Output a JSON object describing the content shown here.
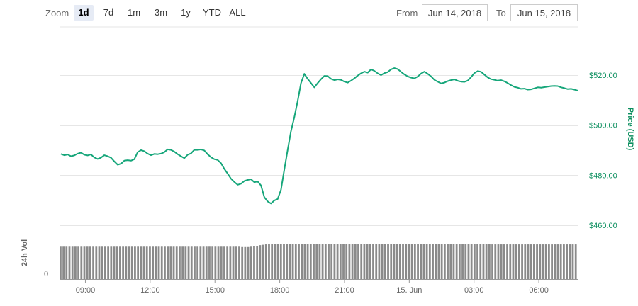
{
  "toolbar": {
    "zoom_label": "Zoom",
    "zoom_buttons": [
      "1d",
      "7d",
      "1m",
      "3m",
      "1y",
      "YTD",
      "ALL"
    ],
    "active_zoom": "1d",
    "from_label": "From",
    "from_value": "Jun 14, 2018",
    "to_label": "To",
    "to_value": "Jun 15, 2018"
  },
  "colors": {
    "price_line": "#16a67a",
    "price_axis": "#0b8e5e",
    "volume_bar": "#8a8a8a",
    "grid": "#e6e6e6"
  },
  "chart_data": {
    "type": "line",
    "ylabel": "Price (USD)",
    "y_ticks": [
      "$460.00",
      "$480.00",
      "$500.00",
      "$520.00"
    ],
    "ylim": [
      460,
      520
    ],
    "x_ticks": [
      "09:00",
      "12:00",
      "15:00",
      "18:00",
      "21:00",
      "15. Jun",
      "03:00",
      "06:00"
    ],
    "x_range": [
      "Jun 14, 2018 08:00",
      "Jun 15, 2018 08:00"
    ],
    "series": [
      {
        "values": [
          488.5,
          488,
          488.3,
          487.6,
          487.9,
          488.6,
          489,
          488.2,
          487.9,
          488.3,
          487.1,
          486.5,
          487,
          488,
          487.6,
          487,
          485.5,
          484.2,
          484.6,
          485.8,
          486,
          485.8,
          486.4,
          489.2,
          490,
          489.6,
          488.6,
          488,
          488.5,
          488.4,
          488.6,
          489.2,
          490.3,
          490.1,
          489.4,
          488.4,
          487.6,
          486.8,
          488.2,
          488.7,
          490.1,
          490.1,
          490.3,
          489.9,
          488.4,
          487.2,
          486.4,
          486.1,
          484.8,
          482.5,
          480.6,
          478.6,
          477.3,
          476.2,
          476.6,
          477.7,
          478.1,
          478.4,
          477.2,
          477.5,
          475.9,
          471.2,
          469.5,
          468.7,
          469.9,
          470.5,
          474.2,
          482.3,
          490.1,
          497.6,
          503.2,
          509.6,
          516.8,
          520.5,
          518.5,
          516.8,
          515.1,
          516.8,
          518.4,
          519.7,
          519.6,
          518.5,
          518,
          518.3,
          518.1,
          517.4,
          517,
          517.8,
          518.7,
          519.8,
          520.7,
          521.4,
          521,
          522.3,
          521.7,
          520.7,
          520,
          520.8,
          521.2,
          522.3,
          522.8,
          522.4,
          521.3,
          520.3,
          519.5,
          519,
          518.7,
          519.4,
          520.6,
          521.4,
          520.5,
          519.5,
          518.1,
          517.4,
          516.7,
          517,
          517.6,
          518,
          518.3,
          517.7,
          517.4,
          517.3,
          517.8,
          519.2,
          520.8,
          521.6,
          521.3,
          520.2,
          519.1,
          518.4,
          518.1,
          517.8,
          518,
          517.5,
          516.8,
          516,
          515.3,
          515,
          514.5,
          514.6,
          514.2,
          514.3,
          514.7,
          515.1,
          515,
          515.2,
          515.4,
          515.6,
          515.7,
          515.6,
          515.1,
          514.8,
          514.4,
          514.5,
          514.2,
          513.8
        ],
        "color": "#16a67a"
      }
    ],
    "volume": {
      "label": "24h Vol",
      "y_ticks": [
        "0"
      ],
      "values": [
        0.86,
        0.86,
        0.86,
        0.86,
        0.86,
        0.86,
        0.86,
        0.86,
        0.86,
        0.86,
        0.86,
        0.86,
        0.86,
        0.86,
        0.86,
        0.86,
        0.86,
        0.86,
        0.86,
        0.86,
        0.86,
        0.86,
        0.86,
        0.86,
        0.86,
        0.86,
        0.86,
        0.86,
        0.86,
        0.86,
        0.86,
        0.86,
        0.86,
        0.86,
        0.86,
        0.86,
        0.86,
        0.86,
        0.86,
        0.86,
        0.86,
        0.86,
        0.86,
        0.86,
        0.86,
        0.86,
        0.86,
        0.86,
        0.86,
        0.86,
        0.86,
        0.86,
        0.86,
        0.86,
        0.86,
        0.86,
        0.86,
        0.86,
        0.86,
        0.86,
        0.86,
        0.85,
        0.85,
        0.85,
        0.86,
        0.87,
        0.88,
        0.9,
        0.91,
        0.92,
        0.93,
        0.93,
        0.94,
        0.94,
        0.94,
        0.94,
        0.94,
        0.94,
        0.94,
        0.94,
        0.94,
        0.94,
        0.94,
        0.94,
        0.94,
        0.94,
        0.94,
        0.94,
        0.94,
        0.94,
        0.94,
        0.94,
        0.94,
        0.94,
        0.94,
        0.94,
        0.94,
        0.94,
        0.94,
        0.94,
        0.94,
        0.94,
        0.94,
        0.94,
        0.94,
        0.94,
        0.94,
        0.94,
        0.94,
        0.94,
        0.94,
        0.94,
        0.94,
        0.94,
        0.94,
        0.94,
        0.94,
        0.94,
        0.94,
        0.94,
        0.94,
        0.94,
        0.94,
        0.94,
        0.94,
        0.94,
        0.94,
        0.94,
        0.94,
        0.94,
        0.94,
        0.94,
        0.94,
        0.94,
        0.94,
        0.94,
        0.94,
        0.94,
        0.93,
        0.93,
        0.93,
        0.93,
        0.93,
        0.93,
        0.93,
        0.92,
        0.92,
        0.92,
        0.92,
        0.92,
        0.92,
        0.92,
        0.92,
        0.92,
        0.92,
        0.92,
        0.92,
        0.92,
        0.92,
        0.92,
        0.92,
        0.92,
        0.92,
        0.92,
        0.92,
        0.92,
        0.92,
        0.92,
        0.92,
        0.92,
        0.92,
        0.92,
        0.92,
        0.92
      ]
    }
  }
}
